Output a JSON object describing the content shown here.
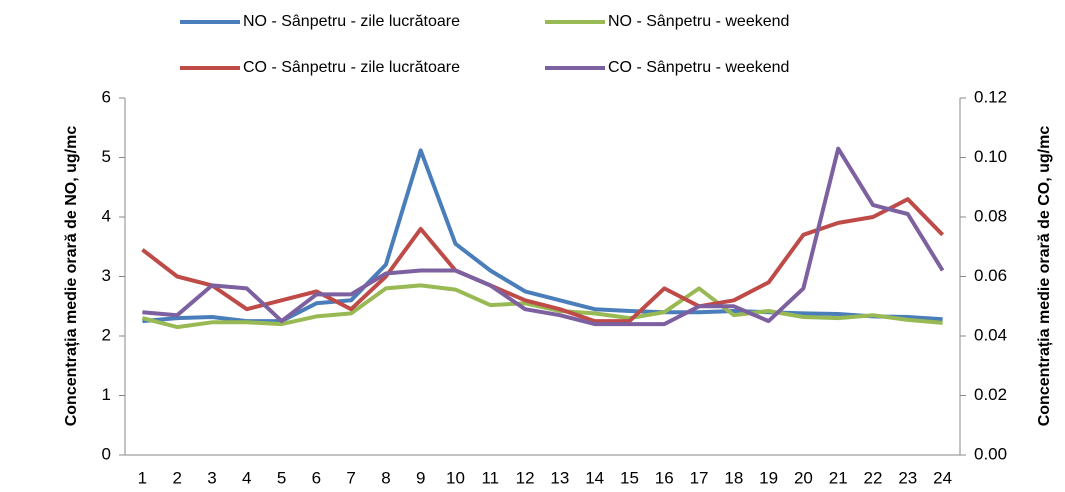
{
  "chart_data": {
    "type": "line",
    "categories": [
      "1",
      "2",
      "3",
      "4",
      "5",
      "6",
      "7",
      "8",
      "9",
      "10",
      "11",
      "12",
      "13",
      "14",
      "15",
      "16",
      "17",
      "18",
      "19",
      "20",
      "21",
      "22",
      "23",
      "24"
    ],
    "ylabel": "Concentrația medie orară de NO, ug/mc",
    "y2label": "Concentrația medie orară de CO, ug/mc",
    "ylim": [
      0,
      6
    ],
    "yticks": [
      0,
      1,
      2,
      3,
      4,
      5,
      6
    ],
    "y2lim": [
      0,
      0.12
    ],
    "y2ticks": [
      {
        "value": 0,
        "label": "0.00"
      },
      0.02,
      0.04,
      0.06,
      0.08,
      {
        "value": 0.1,
        "label": "0.10"
      },
      0.12
    ],
    "legend": "top",
    "grid": false,
    "series": [
      {
        "name": "NO - Sânpetru - zile lucrătoare",
        "color": "#4a7ebb",
        "axis": "y",
        "values": [
          2.25,
          2.3,
          2.32,
          2.25,
          2.25,
          2.55,
          2.6,
          3.2,
          5.12,
          3.55,
          3.1,
          2.75,
          2.6,
          2.45,
          2.42,
          2.4,
          2.4,
          2.42,
          2.4,
          2.38,
          2.37,
          2.33,
          2.32,
          2.28
        ]
      },
      {
        "name": "NO - Sânpetru - weekend",
        "color": "#98b954",
        "axis": "y",
        "values": [
          2.3,
          2.15,
          2.23,
          2.23,
          2.2,
          2.33,
          2.38,
          2.8,
          2.85,
          2.78,
          2.52,
          2.55,
          2.42,
          2.38,
          2.3,
          2.4,
          2.8,
          2.35,
          2.42,
          2.32,
          2.3,
          2.35,
          2.27,
          2.22
        ]
      },
      {
        "name": "CO - Sânpetru - zile lucrătoare",
        "color": "#be4b48",
        "axis": "y2",
        "values": [
          0.069,
          0.06,
          0.057,
          0.049,
          0.052,
          0.055,
          0.049,
          0.06,
          0.076,
          0.062,
          0.057,
          0.052,
          0.049,
          0.045,
          0.045,
          0.056,
          0.05,
          0.052,
          0.058,
          0.074,
          0.078,
          0.08,
          0.086,
          0.074
        ]
      },
      {
        "name": "CO - Sânpetru - weekend",
        "color": "#7d60a0",
        "axis": "y2",
        "values": [
          0.048,
          0.047,
          0.057,
          0.056,
          0.045,
          0.054,
          0.054,
          0.061,
          0.062,
          0.062,
          0.057,
          0.049,
          0.047,
          0.044,
          0.044,
          0.044,
          0.05,
          0.05,
          0.045,
          0.056,
          0.103,
          0.084,
          0.081,
          0.062
        ]
      }
    ]
  }
}
